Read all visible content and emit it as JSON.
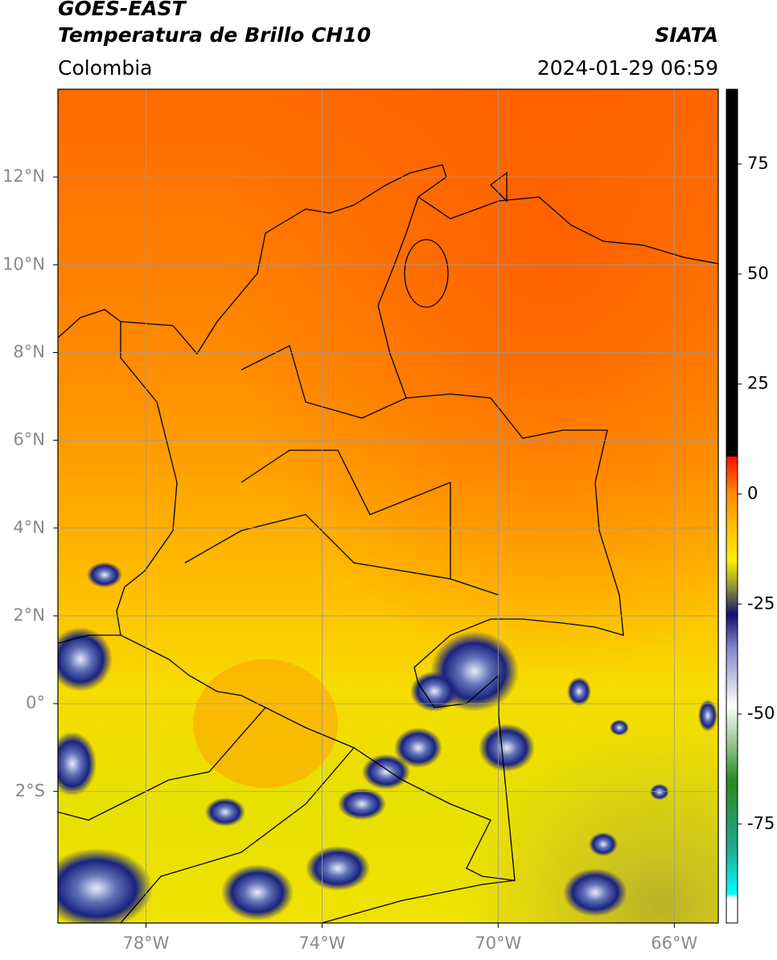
{
  "chart_data": {
    "type": "map",
    "title": "GOES-EAST",
    "subtitle": "Temperatura de Brillo CH10",
    "source": "SIATA",
    "region": "Colombia",
    "datetime": "2024-01-29 06:59",
    "xlim": [
      -80,
      -65
    ],
    "ylim": [
      -5,
      14
    ],
    "xticks": [
      {
        "value": -78,
        "label": "78°W"
      },
      {
        "value": -74,
        "label": "74°W"
      },
      {
        "value": -70,
        "label": "70°W"
      },
      {
        "value": -66,
        "label": "66°W"
      }
    ],
    "yticks": [
      {
        "value": -2,
        "label": "2°S"
      },
      {
        "value": 0,
        "label": "0°"
      },
      {
        "value": 2,
        "label": "2°N"
      },
      {
        "value": 4,
        "label": "4°N"
      },
      {
        "value": 6,
        "label": "6°N"
      },
      {
        "value": 8,
        "label": "8°N"
      },
      {
        "value": 10,
        "label": "10°N"
      },
      {
        "value": 12,
        "label": "12°N"
      }
    ],
    "grid": true,
    "colorbar": {
      "lim": [
        -97.5,
        92
      ],
      "ticks": [
        75,
        50,
        25,
        0,
        -25,
        -50,
        -75
      ]
    }
  }
}
